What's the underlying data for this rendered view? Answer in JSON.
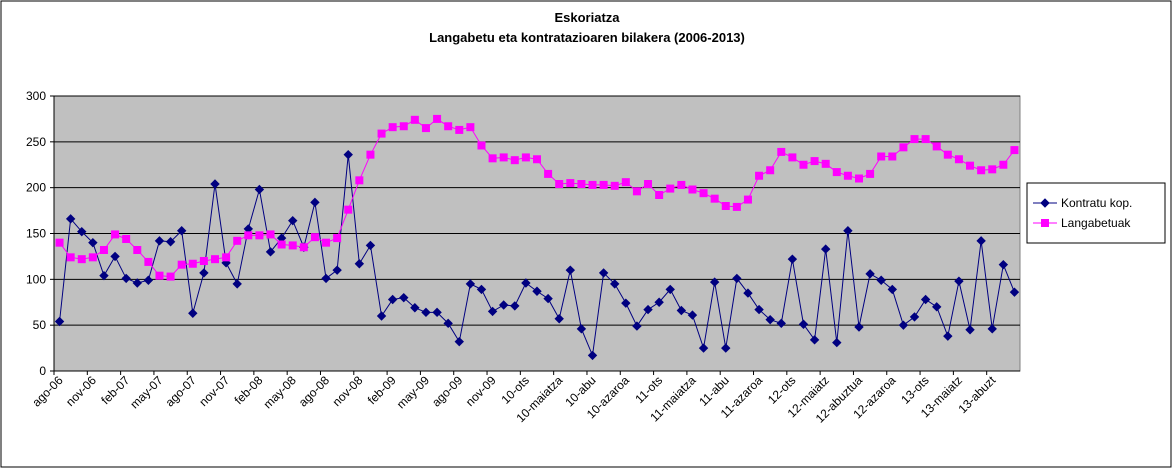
{
  "chart_data": {
    "type": "line",
    "title": "Eskoriatza",
    "subtitle": "Langabetu eta kontratazioaren bilakera (2006-2013)",
    "categories": [
      "ago-06",
      null,
      null,
      "nov-06",
      null,
      null,
      "feb-07",
      null,
      null,
      "may-07",
      null,
      null,
      "ago-07",
      null,
      null,
      "nov-07",
      null,
      null,
      "feb-08",
      null,
      null,
      "may-08",
      null,
      null,
      "ago-08",
      null,
      null,
      "nov-08",
      null,
      null,
      "feb-09",
      null,
      null,
      "may-09",
      null,
      null,
      "ago-09",
      null,
      null,
      "nov-09",
      null,
      null,
      "10-ots",
      null,
      null,
      "10-maiatza",
      null,
      null,
      "10-abu",
      null,
      null,
      "10-azaroa",
      null,
      null,
      "11-ots",
      null,
      null,
      "11-maiatza",
      null,
      null,
      "11-abu",
      null,
      null,
      "11-azaroa",
      null,
      null,
      "12-ots",
      null,
      null,
      "12-maiatz",
      null,
      null,
      "12-abuztua",
      null,
      null,
      "12-azaroa",
      null,
      null,
      "13-ots",
      null,
      null,
      "13-maiatz",
      null,
      null,
      "13-abuzt",
      null,
      null
    ],
    "series": [
      {
        "name": "Kontratu kop.",
        "color": "#000080",
        "marker": "diamond",
        "values": [
          54,
          166,
          152,
          140,
          104,
          125,
          101,
          96,
          99,
          142,
          141,
          153,
          63,
          107,
          204,
          118,
          95,
          155,
          198,
          130,
          145,
          164,
          135,
          184,
          101,
          110,
          236,
          117,
          137,
          60,
          78,
          80,
          69,
          64,
          64,
          52,
          32,
          95,
          89,
          65,
          72,
          71,
          96,
          87,
          79,
          57,
          110,
          46,
          17,
          107,
          95,
          74,
          49,
          67,
          75,
          89,
          66,
          61,
          25,
          97,
          25,
          101,
          85,
          67,
          56,
          52,
          122,
          51,
          34,
          133,
          31,
          153,
          48,
          106,
          99,
          89,
          50,
          59,
          78,
          70,
          38,
          98,
          45,
          142,
          46,
          116,
          86
        ]
      },
      {
        "name": "Langabetuak",
        "color": "#ff00ff",
        "marker": "square",
        "values": [
          140,
          124,
          122,
          124,
          132,
          149,
          144,
          132,
          119,
          104,
          103,
          116,
          117,
          120,
          122,
          124,
          142,
          148,
          148,
          149,
          138,
          137,
          135,
          146,
          140,
          145,
          176,
          208,
          236,
          259,
          266,
          267,
          274,
          265,
          275,
          267,
          263,
          266,
          246,
          232,
          233,
          230,
          233,
          231,
          215,
          204,
          205,
          204,
          203,
          203,
          202,
          206,
          196,
          204,
          192,
          199,
          203,
          198,
          194,
          188,
          180,
          179,
          187,
          213,
          219,
          239,
          233,
          225,
          229,
          226,
          217,
          213,
          210,
          215,
          234,
          234,
          244,
          253,
          253,
          245,
          236,
          231,
          224,
          219,
          220,
          225,
          241
        ]
      }
    ],
    "ylim": [
      0,
      300
    ],
    "yticks": [
      0,
      50,
      100,
      150,
      200,
      250,
      300
    ],
    "grid": true,
    "legend": "right"
  }
}
